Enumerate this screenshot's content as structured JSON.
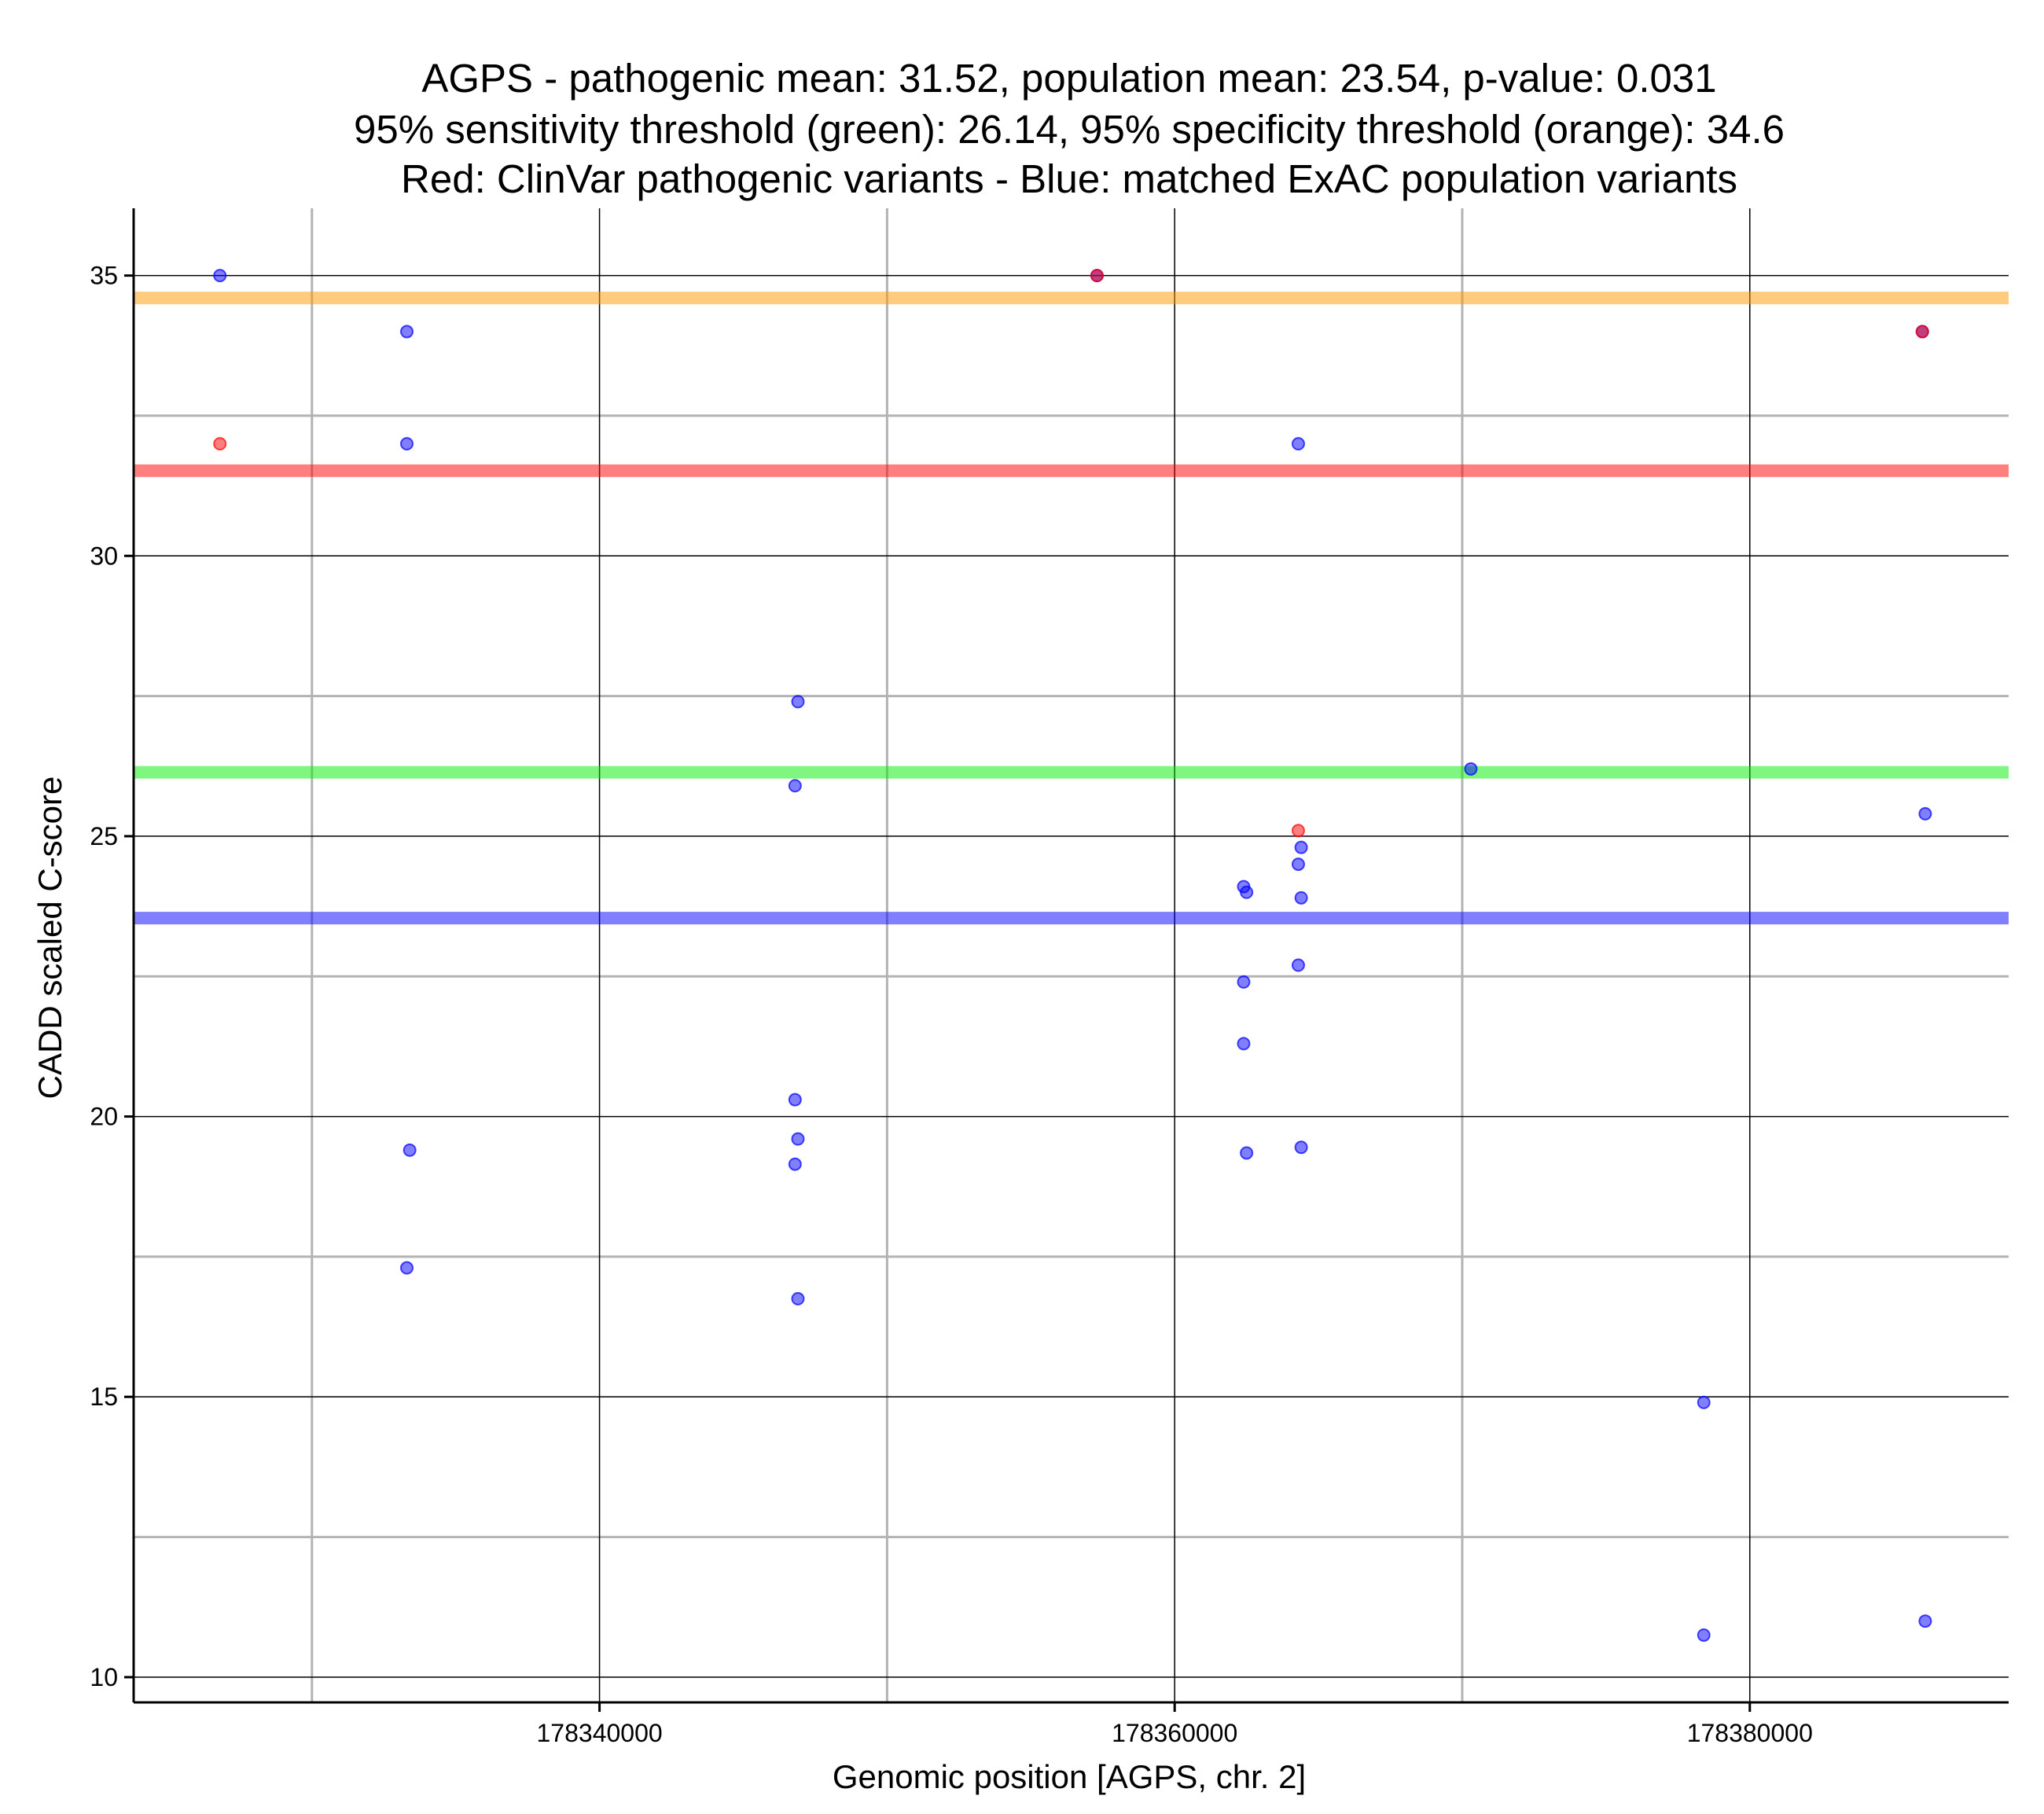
{
  "chart_data": {
    "type": "scatter",
    "title_lines": [
      "AGPS - pathogenic mean: 31.52, population mean: 23.54, p-value: 0.031",
      "95% sensitivity threshold (green): 26.14, 95% specificity threshold (orange): 34.6",
      "Red: ClinVar pathogenic variants - Blue: matched ExAC population variants"
    ],
    "xlabel": "Genomic position [AGPS, chr. 2]",
    "ylabel": "CADD scaled C-score",
    "xlim": [
      178323800,
      178389000
    ],
    "ylim": [
      9.55,
      36.2
    ],
    "x_ticks": [
      178340000,
      178360000,
      178380000
    ],
    "x_tick_labels": [
      "178340000",
      "178360000",
      "178380000"
    ],
    "x_minor_grid": [
      178330000,
      178350000,
      178370000
    ],
    "y_ticks": [
      10,
      15,
      20,
      25,
      30,
      35
    ],
    "y_tick_labels": [
      "10",
      "15",
      "20",
      "25",
      "30",
      "35"
    ],
    "y_minor_grid": [
      12.5,
      17.5,
      22.5,
      27.5,
      32.5
    ],
    "grid": true,
    "colors": {
      "pathogenic": "#ff0000",
      "population": "#0000ff",
      "sensitivity": "#00ee00",
      "specificity": "#ff9900",
      "major_grid": "#000000",
      "minor_grid": "#b3b3b3"
    },
    "hlines": [
      {
        "name": "95% specificity threshold",
        "value": 34.6,
        "color": "#ff9900"
      },
      {
        "name": "pathogenic mean",
        "value": 31.52,
        "color": "#ff0000"
      },
      {
        "name": "95% sensitivity threshold",
        "value": 26.14,
        "color": "#00ee00"
      },
      {
        "name": "population mean",
        "value": 23.54,
        "color": "#0000ff"
      }
    ],
    "series": [
      {
        "name": "ClinVar pathogenic variants",
        "color": "#ff0000",
        "points": [
          {
            "x": 178326800,
            "y": 32.0
          },
          {
            "x": 178357300,
            "y": 35.0
          },
          {
            "x": 178364300,
            "y": 25.1
          },
          {
            "x": 178386000,
            "y": 34.0
          }
        ]
      },
      {
        "name": "matched ExAC population variants",
        "color": "#0000ff",
        "points": [
          {
            "x": 178326800,
            "y": 35.0
          },
          {
            "x": 178333300,
            "y": 34.0
          },
          {
            "x": 178333300,
            "y": 32.0
          },
          {
            "x": 178333400,
            "y": 19.4
          },
          {
            "x": 178333300,
            "y": 17.3
          },
          {
            "x": 178346900,
            "y": 27.4
          },
          {
            "x": 178346800,
            "y": 25.9
          },
          {
            "x": 178346800,
            "y": 20.3
          },
          {
            "x": 178346900,
            "y": 19.6
          },
          {
            "x": 178346800,
            "y": 19.15
          },
          {
            "x": 178346900,
            "y": 16.75
          },
          {
            "x": 178357300,
            "y": 35.0
          },
          {
            "x": 178362400,
            "y": 24.1
          },
          {
            "x": 178362500,
            "y": 24.0
          },
          {
            "x": 178362400,
            "y": 22.4
          },
          {
            "x": 178362400,
            "y": 21.3
          },
          {
            "x": 178362500,
            "y": 19.35
          },
          {
            "x": 178364300,
            "y": 32.0
          },
          {
            "x": 178364400,
            "y": 24.8
          },
          {
            "x": 178364300,
            "y": 24.5
          },
          {
            "x": 178364400,
            "y": 23.9
          },
          {
            "x": 178364300,
            "y": 22.7
          },
          {
            "x": 178364400,
            "y": 19.45
          },
          {
            "x": 178370300,
            "y": 26.2
          },
          {
            "x": 178378400,
            "y": 14.9
          },
          {
            "x": 178378400,
            "y": 10.75
          },
          {
            "x": 178386000,
            "y": 34.0
          },
          {
            "x": 178386100,
            "y": 25.4
          },
          {
            "x": 178386100,
            "y": 11.0
          }
        ]
      }
    ]
  }
}
